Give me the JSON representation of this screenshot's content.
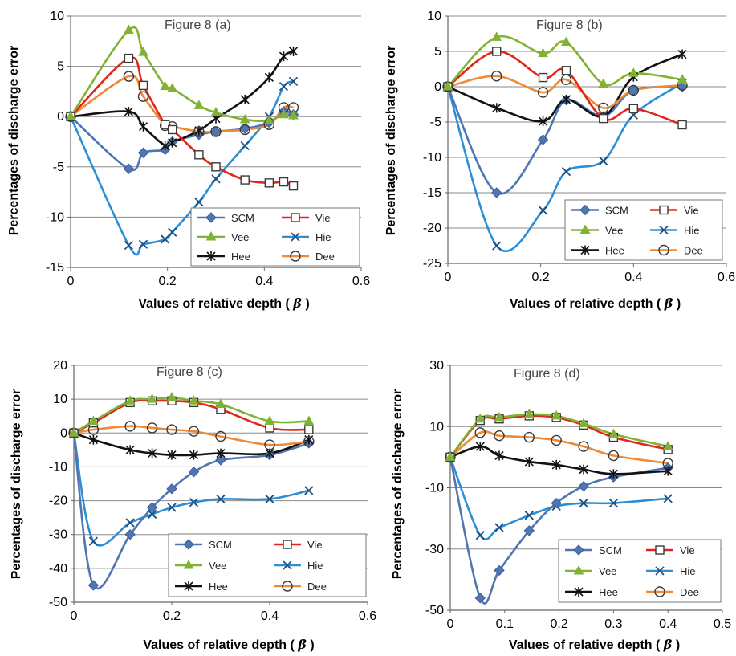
{
  "chart_data": [
    {
      "type": "line",
      "title": "Figure 8 (a)",
      "xlabel": "Values of  relative depth (",
      "xlabel_symbol": "β",
      "xlabel_close": ")",
      "ylabel": "Percentages of  discharge error",
      "xlim": [
        0,
        0.6
      ],
      "ylim": [
        -15,
        10
      ],
      "xticks": [
        0,
        0.2,
        0.4,
        0.6
      ],
      "xtick_labels": [
        "0",
        "0.2",
        "0.4",
        "0.6"
      ],
      "yticks": [
        -15,
        -10,
        -5,
        0,
        5,
        10
      ],
      "ytick_labels": [
        "-15",
        "-10",
        "-5",
        "0",
        "5",
        "10"
      ],
      "grid": "horizontal",
      "legend_position": "bottom-right",
      "legend_columns": 2,
      "series": [
        {
          "name": "SCM",
          "color": "#4f75b3",
          "marker": "diamond",
          "x": [
            0,
            0.12,
            0.15,
            0.195,
            0.21,
            0.265,
            0.3,
            0.36,
            0.41,
            0.44,
            0.46
          ],
          "y": [
            0,
            -5.2,
            -3.6,
            -3.3,
            -2.5,
            -1.8,
            -1.5,
            -1.2,
            -0.6,
            0.5,
            0.2
          ]
        },
        {
          "name": "Vie",
          "color": "#e0261b",
          "marker": "square",
          "x": [
            0,
            0.12,
            0.15,
            0.195,
            0.21,
            0.265,
            0.3,
            0.36,
            0.41,
            0.44,
            0.46
          ],
          "y": [
            0,
            5.8,
            3.1,
            -0.8,
            -1.3,
            -3.8,
            -5,
            -6.3,
            -6.6,
            -6.5,
            -6.9
          ]
        },
        {
          "name": "Vee",
          "color": "#82b234",
          "marker": "triangle",
          "x": [
            0,
            0.12,
            0.15,
            0.195,
            0.21,
            0.265,
            0.3,
            0.36,
            0.41,
            0.44,
            0.46
          ],
          "y": [
            0,
            8.6,
            6.4,
            3.0,
            2.8,
            1.1,
            0.4,
            -0.3,
            -0.4,
            0.2,
            0.1
          ]
        },
        {
          "name": "Hie",
          "color": "#2b8fd6",
          "marker": "x",
          "x": [
            0,
            0.12,
            0.15,
            0.195,
            0.21,
            0.265,
            0.3,
            0.36,
            0.41,
            0.44,
            0.46
          ],
          "y": [
            0,
            -12.8,
            -12.7,
            -12.2,
            -11.5,
            -8.5,
            -6.2,
            -2.9,
            0,
            3.0,
            3.5
          ]
        },
        {
          "name": "Hee",
          "color": "#111111",
          "marker": "star",
          "x": [
            0,
            0.12,
            0.15,
            0.195,
            0.21,
            0.265,
            0.3,
            0.36,
            0.41,
            0.44,
            0.46
          ],
          "y": [
            0,
            0.5,
            -1.0,
            -2.9,
            -2.6,
            -1.4,
            -0.2,
            1.7,
            3.9,
            6.0,
            6.5
          ]
        },
        {
          "name": "Dee",
          "color": "#ee8a35",
          "marker": "circle",
          "x": [
            0,
            0.12,
            0.15,
            0.195,
            0.21,
            0.265,
            0.3,
            0.36,
            0.41,
            0.44,
            0.46
          ],
          "y": [
            0,
            4.0,
            2.0,
            -0.9,
            -1.0,
            -1.5,
            -1.5,
            -1.3,
            -0.8,
            0.9,
            0.9
          ]
        }
      ]
    },
    {
      "type": "line",
      "title": "Figure 8 (b)",
      "xlabel": "Values of  relative depth (",
      "xlabel_symbol": "β",
      "xlabel_close": ")",
      "ylabel": "Percentages of  discharge error",
      "xlim": [
        0,
        0.6
      ],
      "ylim": [
        -25,
        10
      ],
      "xticks": [
        0,
        0.2,
        0.4,
        0.6
      ],
      "xtick_labels": [
        "0",
        "0.2",
        "0.4",
        "0.6"
      ],
      "yticks": [
        -25,
        -20,
        -15,
        -10,
        -5,
        0,
        5,
        10
      ],
      "ytick_labels": [
        "-25",
        "-20",
        "-15",
        "-10",
        "-5",
        "0",
        "5",
        "10"
      ],
      "grid": "horizontal",
      "legend_position": "bottom-right",
      "legend_columns": 2,
      "series": [
        {
          "name": "SCM",
          "color": "#4f75b3",
          "marker": "diamond",
          "x": [
            0,
            0.105,
            0.205,
            0.255,
            0.335,
            0.4,
            0.505
          ],
          "y": [
            0,
            -15,
            -7.5,
            -1.9,
            -4.2,
            -0.5,
            0
          ]
        },
        {
          "name": "Vie",
          "color": "#e0261b",
          "marker": "square",
          "x": [
            0,
            0.105,
            0.205,
            0.255,
            0.335,
            0.4,
            0.505
          ],
          "y": [
            0,
            5.0,
            1.3,
            2.3,
            -4.5,
            -3.1,
            -5.4
          ]
        },
        {
          "name": "Vee",
          "color": "#82b234",
          "marker": "triangle",
          "x": [
            0,
            0.105,
            0.205,
            0.255,
            0.335,
            0.4,
            0.505
          ],
          "y": [
            0,
            7.0,
            4.7,
            6.3,
            0.4,
            1.9,
            1.0
          ]
        },
        {
          "name": "Hie",
          "color": "#2b8fd6",
          "marker": "x",
          "x": [
            0,
            0.105,
            0.205,
            0.255,
            0.335,
            0.4,
            0.505
          ],
          "y": [
            0,
            -22.5,
            -17.5,
            -12,
            -10.5,
            -4.0,
            0.5
          ]
        },
        {
          "name": "Hee",
          "color": "#111111",
          "marker": "star",
          "x": [
            0,
            0.105,
            0.205,
            0.255,
            0.335,
            0.4,
            0.505
          ],
          "y": [
            0,
            -3.0,
            -4.9,
            -1.8,
            -4.2,
            1.4,
            4.6
          ]
        },
        {
          "name": "Dee",
          "color": "#ee8a35",
          "marker": "circle",
          "x": [
            0,
            0.105,
            0.205,
            0.255,
            0.335,
            0.4,
            0.505
          ],
          "y": [
            0,
            1.5,
            -0.8,
            1.0,
            -3.0,
            -0.5,
            0.2
          ]
        }
      ]
    },
    {
      "type": "line",
      "title": "Figure 8 (c)",
      "xlabel": "Values of  relative depth (",
      "xlabel_symbol": "β",
      "xlabel_close": ")",
      "ylabel": "Percentages of  discharge error",
      "xlim": [
        0,
        0.6
      ],
      "ylim": [
        -50,
        20
      ],
      "xticks": [
        0,
        0.2,
        0.4,
        0.6
      ],
      "xtick_labels": [
        "0",
        "0.2",
        "0.4",
        "0.6"
      ],
      "yticks": [
        -50,
        -40,
        -30,
        -20,
        -10,
        0,
        10,
        20
      ],
      "ytick_labels": [
        "-50",
        "-40",
        "-30",
        "-20",
        "-10",
        "0",
        "10",
        "20"
      ],
      "grid": "horizontal",
      "legend_position": "bottom-right",
      "legend_columns": 2,
      "series": [
        {
          "name": "SCM",
          "color": "#4f75b3",
          "marker": "diamond",
          "x": [
            0,
            0.04,
            0.115,
            0.16,
            0.2,
            0.245,
            0.3,
            0.4,
            0.48
          ],
          "y": [
            0,
            -45,
            -30,
            -22,
            -16.5,
            -11.5,
            -8,
            -6.5,
            -3
          ]
        },
        {
          "name": "Vie",
          "color": "#e0261b",
          "marker": "square",
          "x": [
            0,
            0.04,
            0.115,
            0.16,
            0.2,
            0.245,
            0.3,
            0.4,
            0.48
          ],
          "y": [
            0,
            3.0,
            9.0,
            9.5,
            9.5,
            9.0,
            7.0,
            1.5,
            1.0
          ]
        },
        {
          "name": "Vee",
          "color": "#82b234",
          "marker": "triangle",
          "x": [
            0,
            0.04,
            0.115,
            0.16,
            0.2,
            0.245,
            0.3,
            0.4,
            0.48
          ],
          "y": [
            0,
            3.5,
            9.5,
            10.0,
            10.5,
            9.5,
            8.5,
            3.5,
            3.5
          ]
        },
        {
          "name": "Hie",
          "color": "#2b8fd6",
          "marker": "x",
          "x": [
            0,
            0.04,
            0.115,
            0.16,
            0.2,
            0.245,
            0.3,
            0.4,
            0.48
          ],
          "y": [
            0,
            -32,
            -26.5,
            -24,
            -22,
            -20.5,
            -19.5,
            -19.5,
            -17
          ]
        },
        {
          "name": "Hee",
          "color": "#111111",
          "marker": "star",
          "x": [
            0,
            0.04,
            0.115,
            0.16,
            0.2,
            0.245,
            0.3,
            0.4,
            0.48
          ],
          "y": [
            0,
            -2.0,
            -5.0,
            -6.0,
            -6.5,
            -6.5,
            -6.0,
            -6.0,
            -2.0
          ]
        },
        {
          "name": "Dee",
          "color": "#ee8a35",
          "marker": "circle",
          "x": [
            0,
            0.04,
            0.115,
            0.16,
            0.2,
            0.245,
            0.3,
            0.4,
            0.48
          ],
          "y": [
            0,
            1.0,
            2.0,
            1.5,
            1.0,
            0.5,
            -1.0,
            -3.5,
            -2.5
          ]
        }
      ]
    },
    {
      "type": "line",
      "title": "Figure 8 (d)",
      "xlabel": "Values of  relative depth (",
      "xlabel_symbol": "β",
      "xlabel_close": ")",
      "ylabel": "Percentages of  discharge error",
      "xlim": [
        0,
        0.5
      ],
      "ylim": [
        -50,
        30
      ],
      "xticks": [
        0,
        0.1,
        0.2,
        0.3,
        0.4,
        0.5
      ],
      "xtick_labels": [
        "0",
        "0.1",
        "0.2",
        "0.3",
        "0.4",
        "0.5"
      ],
      "yticks": [
        -50,
        -30,
        -10,
        10,
        30
      ],
      "ytick_labels": [
        "-50",
        "-30",
        "-10",
        "10",
        "30"
      ],
      "grid": "horizontal",
      "legend_position": "bottom-right",
      "legend_columns": 2,
      "series": [
        {
          "name": "SCM",
          "color": "#4f75b3",
          "marker": "diamond",
          "x": [
            0,
            0.055,
            0.09,
            0.145,
            0.195,
            0.245,
            0.3,
            0.4
          ],
          "y": [
            0,
            -46,
            -37,
            -24,
            -15,
            -9.5,
            -6.5,
            -3.5
          ]
        },
        {
          "name": "Vie",
          "color": "#e0261b",
          "marker": "square",
          "x": [
            0,
            0.055,
            0.09,
            0.145,
            0.195,
            0.245,
            0.3,
            0.4
          ],
          "y": [
            0,
            12,
            12.5,
            13.5,
            13,
            10.5,
            6.5,
            2.5
          ]
        },
        {
          "name": "Vee",
          "color": "#82b234",
          "marker": "triangle",
          "x": [
            0,
            0.055,
            0.09,
            0.145,
            0.195,
            0.245,
            0.3,
            0.4
          ],
          "y": [
            0,
            12.5,
            13,
            14,
            13.5,
            11,
            7.5,
            3.5
          ]
        },
        {
          "name": "Hie",
          "color": "#2b8fd6",
          "marker": "x",
          "x": [
            0,
            0.055,
            0.09,
            0.145,
            0.195,
            0.245,
            0.3,
            0.4
          ],
          "y": [
            0,
            -25.5,
            -23,
            -19,
            -16,
            -15,
            -15,
            -13.5
          ]
        },
        {
          "name": "Hee",
          "color": "#111111",
          "marker": "star",
          "x": [
            0,
            0.055,
            0.09,
            0.145,
            0.195,
            0.245,
            0.3,
            0.4
          ],
          "y": [
            0,
            3.5,
            0.5,
            -1.5,
            -2.5,
            -4,
            -5.5,
            -4.5
          ]
        },
        {
          "name": "Dee",
          "color": "#ee8a35",
          "marker": "circle",
          "x": [
            0,
            0.055,
            0.09,
            0.145,
            0.195,
            0.245,
            0.3,
            0.4
          ],
          "y": [
            0,
            8,
            7,
            6.5,
            5.5,
            3.5,
            0.5,
            -2
          ]
        }
      ]
    }
  ]
}
